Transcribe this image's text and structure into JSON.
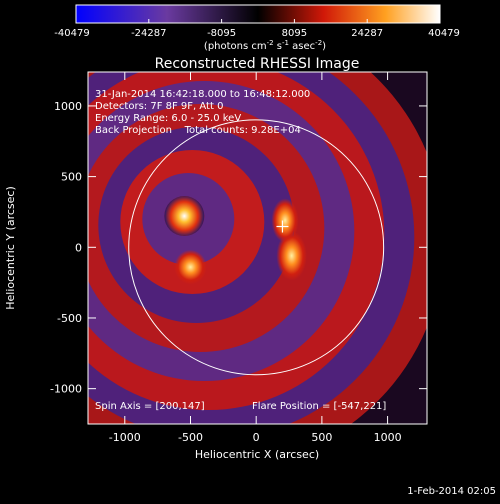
{
  "colorbar": {
    "ticks": [
      "-40479",
      "-24287",
      "-8095",
      "8095",
      "24287",
      "40479"
    ],
    "unit_parts": [
      "(photons cm",
      "-2",
      " s",
      "-1",
      " asec",
      "-2",
      ")"
    ]
  },
  "chart_data": {
    "type": "heatmap",
    "title": "Reconstructed RHESSI Image",
    "xlabel": "Heliocentric X (arcsec)",
    "ylabel": "Heliocentric Y (arcsec)",
    "xlim": [
      -1280,
      1300
    ],
    "ylim": [
      -1250,
      1240
    ],
    "xticks": [
      -1000,
      -500,
      0,
      500,
      1000
    ],
    "yticks": [
      -1000,
      -500,
      0,
      500,
      1000
    ],
    "color_range": [
      -40479,
      40479
    ],
    "colormap": [
      "#0000ff",
      "#6a3aa0",
      "#000000",
      "#e02010",
      "#ffa020",
      "#ffffff"
    ],
    "info_lines": [
      "31-Jan-2014 16:42:18.000 to 16:48:12.000",
      "Detectors: 7F 8F 9F, Att 0",
      "Energy Range: 6.0 - 25.0 keV",
      "Back Projection    Total counts: 9.28E+04"
    ],
    "spin_axis_label": "Spin Axis = [200,147]",
    "flare_position_label": "Flare Position = [-547,221]",
    "spin_axis": [
      200,
      147
    ],
    "flare_position": [
      -547,
      221
    ],
    "solar_limb": {
      "center": [
        0,
        0
      ],
      "radius": 970
    },
    "sources": [
      {
        "x": -547,
        "y": 221,
        "peak": 40479
      },
      {
        "x": -500,
        "y": -140,
        "peak": 30000
      },
      {
        "x": 270,
        "y": -60,
        "peak": 26000
      },
      {
        "x": 220,
        "y": 190,
        "peak": 20000
      }
    ]
  },
  "footer": {
    "timestamp": "1-Feb-2014 02:05"
  }
}
